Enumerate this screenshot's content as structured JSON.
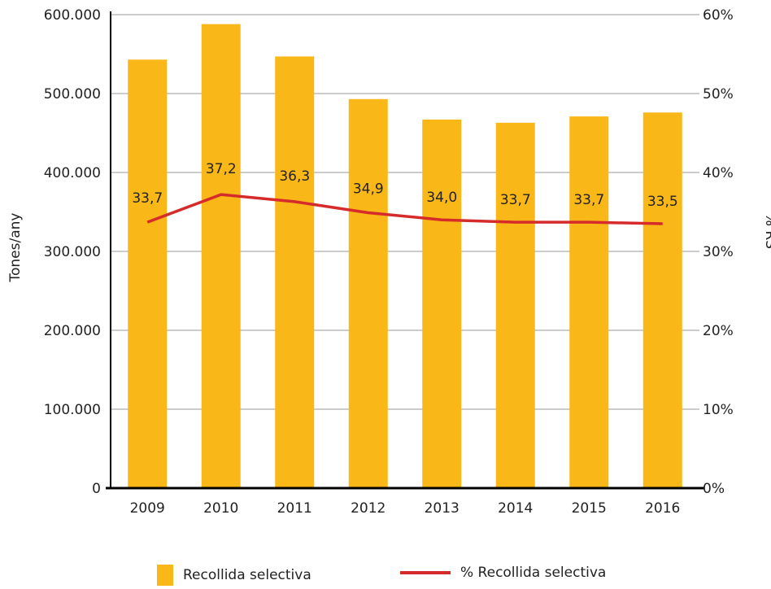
{
  "chart_data": {
    "type": "bar",
    "categories": [
      "2009",
      "2010",
      "2011",
      "2012",
      "2013",
      "2014",
      "2015",
      "2016"
    ],
    "series": [
      {
        "name": "Recollida selectiva",
        "type": "bar",
        "axis": "left",
        "color": "#F9B718",
        "values": [
          543000,
          588000,
          547000,
          493000,
          467000,
          463000,
          471000,
          476000
        ]
      },
      {
        "name": "% Recollida selectiva",
        "type": "line",
        "axis": "right",
        "color": "#D52B2B",
        "values": [
          33.7,
          37.2,
          36.3,
          34.9,
          34.0,
          33.7,
          33.7,
          33.5
        ],
        "labels": [
          "33,7",
          "37,2",
          "36,3",
          "34,9",
          "34,0",
          "33,7",
          "33,7",
          "33,5"
        ]
      }
    ],
    "ylabel": "Tones/any",
    "y2label": "% RS",
    "ylim": [
      0,
      600000
    ],
    "y2lim": [
      0,
      60
    ],
    "yticks": [
      "0",
      "100.000",
      "200.000",
      "300.000",
      "400.000",
      "500.000",
      "600.000"
    ],
    "y2ticks": [
      "0%",
      "10%",
      "20%",
      "30%",
      "40%",
      "50%",
      "60%"
    ],
    "grid": true,
    "legend_position": "bottom"
  }
}
